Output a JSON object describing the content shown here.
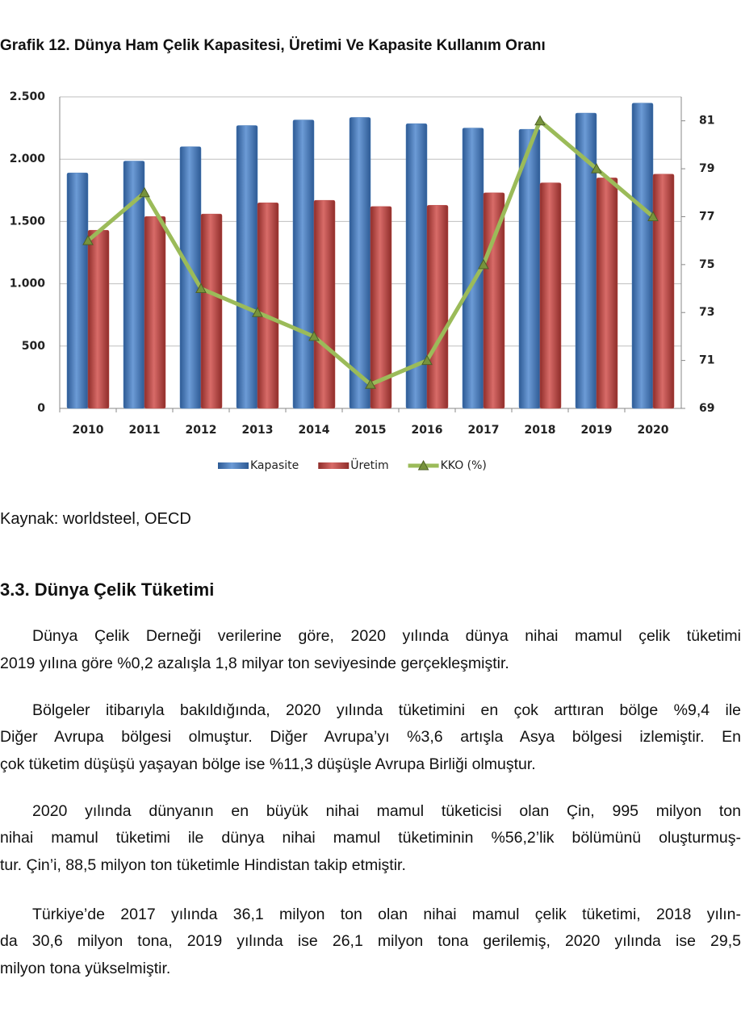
{
  "chart_data": {
    "type": "bar-line",
    "title": "Grafik 12. Dünya Ham Çelik Kapasitesi, Üretimi Ve Kapasite Kullanım Oranı",
    "categories": [
      "2010",
      "2011",
      "2012",
      "2013",
      "2014",
      "2015",
      "2016",
      "2017",
      "2018",
      "2019",
      "2020"
    ],
    "series": [
      {
        "name": "Kapasite",
        "type": "bar",
        "color": "#4f81bd",
        "values": [
          1890,
          1985,
          2100,
          2270,
          2315,
          2335,
          2285,
          2250,
          2240,
          2370,
          2450
        ]
      },
      {
        "name": "Üretim",
        "type": "bar",
        "color": "#c0504d",
        "values": [
          1430,
          1540,
          1560,
          1650,
          1670,
          1620,
          1630,
          1730,
          1810,
          1850,
          1880
        ]
      },
      {
        "name": "KKO (%)",
        "type": "line",
        "axis": "y2",
        "color": "#9bbb59",
        "values": [
          76,
          78,
          74,
          73,
          72,
          70,
          71,
          75,
          81,
          79,
          77
        ]
      }
    ],
    "ylim": [
      0,
      2500
    ],
    "yticks": [
      0,
      500,
      {
        "value": 1000,
        "label": "1.000"
      },
      {
        "value": 1500,
        "label": "1.500"
      },
      {
        "value": 2000,
        "label": "2.000"
      },
      {
        "value": 2500,
        "label": "2.500"
      }
    ],
    "y2lim": [
      69,
      82
    ],
    "y2ticks": [
      69,
      71,
      73,
      75,
      77,
      79,
      81
    ],
    "grid": true,
    "legend": "bottom"
  },
  "source": "Kaynak: worldsteel, OECD",
  "section": {
    "heading": "3.3. Dünya Çelik Tüketimi",
    "paragraphs": [
      [
        "Dünya Çelik Derneği verilerine göre, 2020 yılında dünya nihai mamul çelik tüketimi",
        "2019 yılına göre %0,2 azalışla 1,8 milyar ton seviyesinde gerçekleşmiştir."
      ],
      [
        "Bölgeler itibarıyla bakıldığında, 2020 yılında tüketimini en çok arttıran bölge %9,4 ile",
        "Diğer Avrupa bölgesi olmuştur. Diğer Avrupa’yı %3,6 artışla Asya bölgesi izlemiştir. En",
        "çok tüketim düşüşü yaşayan bölge ise %11,3 düşüşle Avrupa Birliği olmuştur."
      ],
      [
        "2020 yılında dünyanın en büyük nihai mamul tüketicisi olan Çin, 995 milyon ton",
        "nihai mamul tüketimi ile dünya nihai mamul tüketiminin %56,2’lik bölümünü oluşturmuş-",
        "tur. Çin’i, 88,5 milyon ton tüketimle Hindistan takip etmiştir."
      ],
      [
        "Türkiye’de 2017 yılında 36,1 milyon ton olan nihai mamul çelik tüketimi, 2018 yılın-",
        "da 30,6 milyon tona, 2019 yılında ise 26,1 milyon tona gerilemiş, 2020 yılında ise 29,5",
        "milyon tona yükselmiştir."
      ]
    ]
  }
}
